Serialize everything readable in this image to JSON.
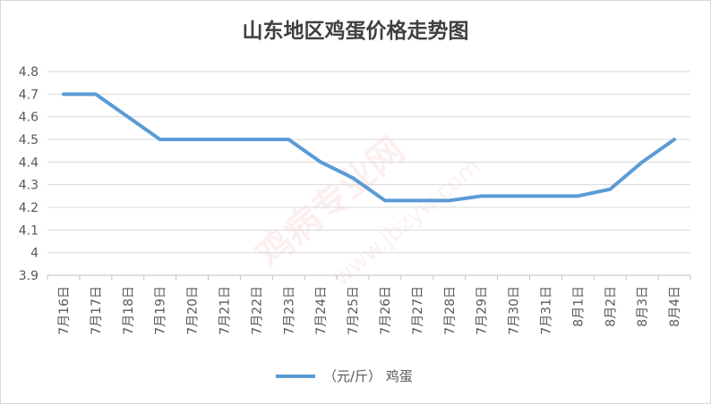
{
  "chart_data": {
    "type": "line",
    "title": "山东地区鸡蛋价格走势图",
    "categories": [
      "7月16日",
      "7月17日",
      "7月18日",
      "7月19日",
      "7月20日",
      "7月21日",
      "7月22日",
      "7月23日",
      "7月24日",
      "7月25日",
      "7月26日",
      "7月27日",
      "7月28日",
      "7月29日",
      "7月30日",
      "7月31日",
      "8月1日",
      "8月2日",
      "8月3日",
      "8月4日"
    ],
    "series": [
      {
        "name": "（元/斤） 鸡蛋",
        "values": [
          4.7,
          4.7,
          4.6,
          4.5,
          4.5,
          4.5,
          4.5,
          4.5,
          4.4,
          4.33,
          4.23,
          4.23,
          4.23,
          4.25,
          4.25,
          4.25,
          4.25,
          4.28,
          4.4,
          4.5
        ]
      }
    ],
    "ylim": [
      3.9,
      4.8
    ],
    "yticks": [
      "3.9",
      "4",
      "4.1",
      "4.2",
      "4.3",
      "4.4",
      "4.5",
      "4.6",
      "4.7",
      "4.8"
    ],
    "grid": true,
    "legend": "bottom",
    "colors": {
      "series": "#5b9bd5",
      "grid": "#d9d9d9",
      "axis": "#bfbfbf"
    }
  },
  "watermark": {
    "main": "鸡病专业网",
    "url": "www.jbzyw.com"
  }
}
